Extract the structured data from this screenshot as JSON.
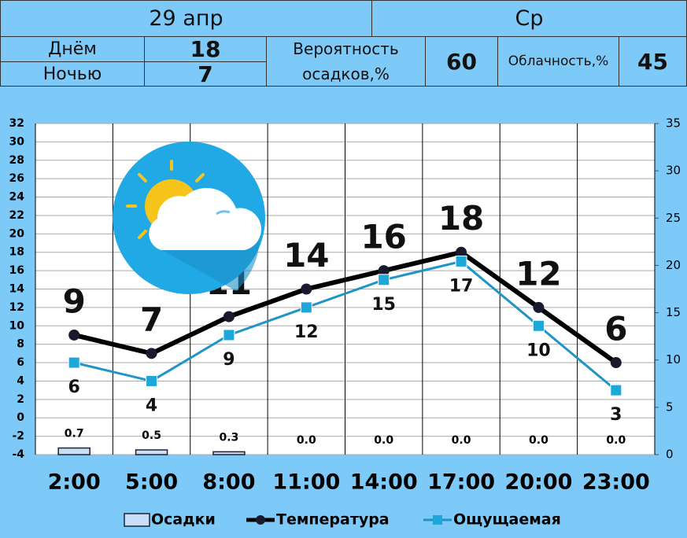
{
  "header": {
    "date": "29 апр",
    "weekday": "Ср",
    "day_label": "Днём",
    "day_value": "18",
    "night_label": "Ночью",
    "night_value": "7",
    "precip_prob_label": "Вероятность осадков,%",
    "precip_prob_value": "60",
    "cloud_label": "Облачность,%",
    "cloud_value": "45"
  },
  "chart_data": {
    "type": "combo",
    "categories": [
      "2:00",
      "5:00",
      "8:00",
      "11:00",
      "14:00",
      "17:00",
      "20:00",
      "23:00"
    ],
    "series": [
      {
        "name": "Осадки",
        "type": "bar",
        "axis": "y2",
        "color": "#c9def7",
        "values": [
          0.7,
          0.5,
          0.3,
          0,
          0,
          0,
          0,
          0
        ],
        "value_labels": [
          "0.7",
          "0.5",
          "0.3",
          "0.0",
          "0.0",
          "0.0",
          "0.0",
          "0.0"
        ]
      },
      {
        "name": "Температура",
        "type": "line",
        "color": "#000000",
        "values": [
          9,
          7,
          11,
          14,
          16,
          18,
          12,
          6
        ]
      },
      {
        "name": "Ощущаемая",
        "type": "line",
        "color": "#1f94c8",
        "values": [
          6,
          4,
          9,
          12,
          15,
          17,
          10,
          3
        ]
      }
    ],
    "ylim": [
      -4,
      32
    ],
    "yticks": [
      -4,
      -2,
      0,
      2,
      4,
      6,
      8,
      10,
      12,
      14,
      16,
      18,
      20,
      22,
      24,
      26,
      28,
      30,
      32
    ],
    "y2lim": [
      0,
      35
    ],
    "y2ticks": [
      0,
      5,
      10,
      15,
      20,
      25,
      30,
      35
    ],
    "grid": true,
    "legend": "bottom"
  }
}
